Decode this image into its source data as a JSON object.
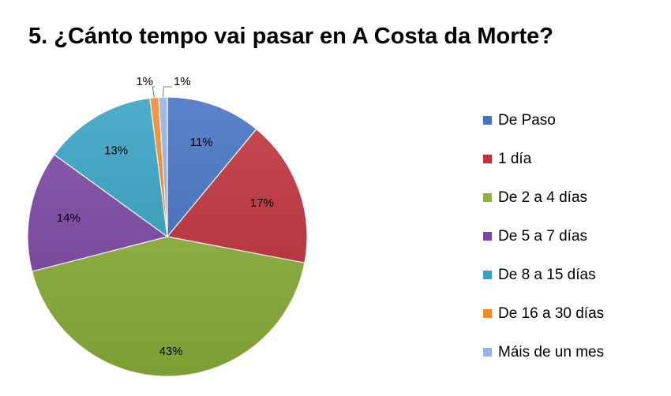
{
  "chart_data": {
    "type": "pie",
    "title": "5. ¿Cánto tempo vai pasar en A Costa da Morte?",
    "legend_position": "right",
    "start_angle_deg": 0,
    "slices": [
      {
        "label": "De Paso",
        "value": 11,
        "display": "11%",
        "color": "#4472C4"
      },
      {
        "label": "1 día",
        "value": 17,
        "display": "17%",
        "color": "#C0313A"
      },
      {
        "label": "De 2 a 4 días",
        "value": 43,
        "display": "43%",
        "color": "#8DB33A"
      },
      {
        "label": "De 5 a 7 días",
        "value": 14,
        "display": "14%",
        "color": "#7D47A4"
      },
      {
        "label": "De 8 a 15 días",
        "value": 13,
        "display": "13%",
        "color": "#36A3C3"
      },
      {
        "label": "De 16 a 30 días",
        "value": 1,
        "display": "1%",
        "color": "#F08A2D"
      },
      {
        "label": "Máis de un mes",
        "value": 1,
        "display": "1%",
        "color": "#98B3E1"
      }
    ]
  }
}
